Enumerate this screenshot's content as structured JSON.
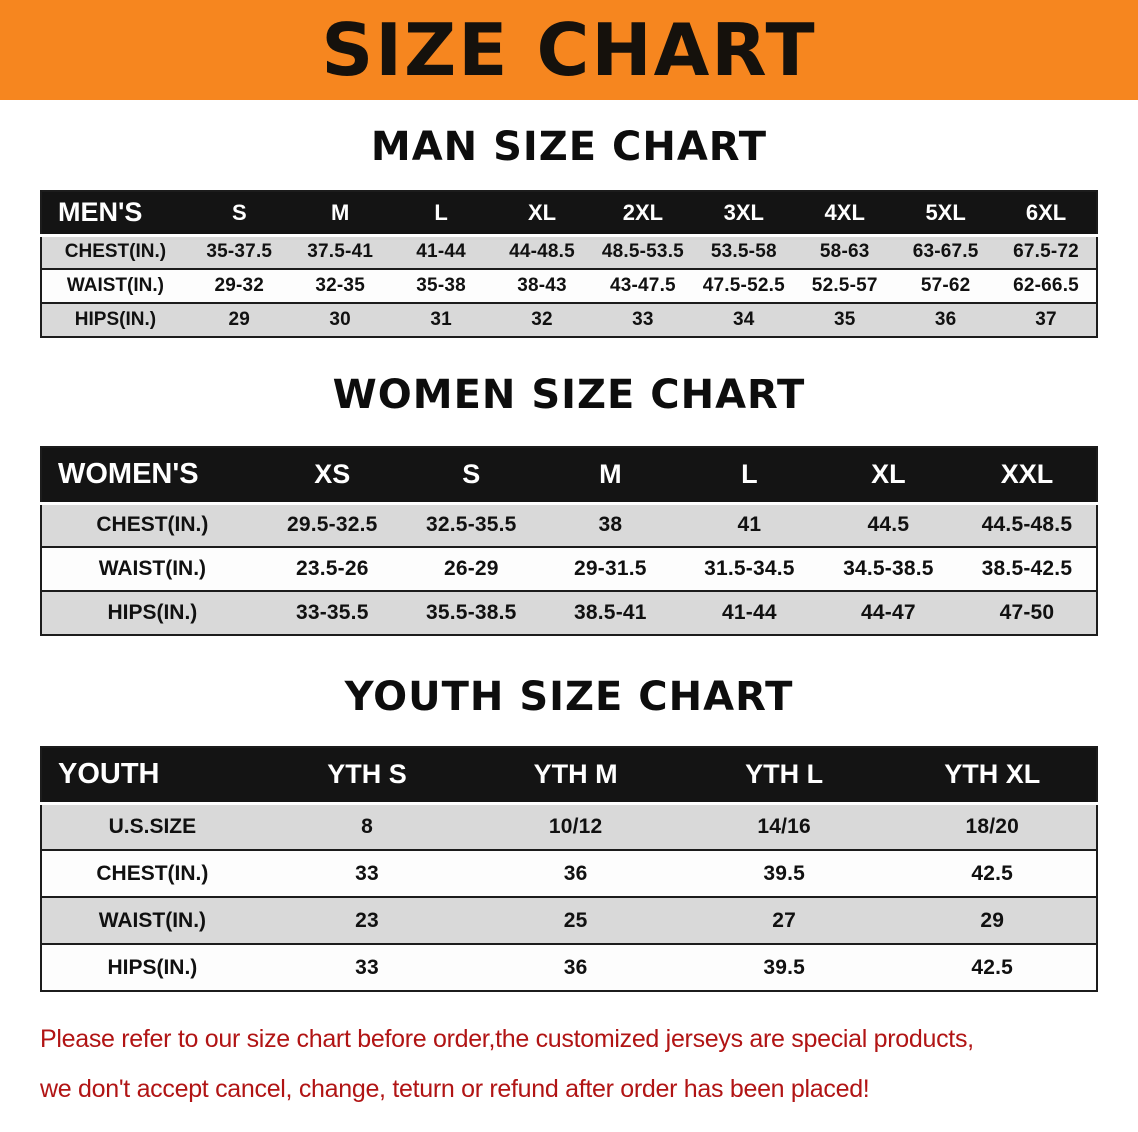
{
  "banner": {
    "title": "SIZE CHART"
  },
  "colors": {
    "banner_bg": "#f6861f",
    "table_header_bg": "#141414",
    "table_header_text": "#ffffff",
    "row_shade": "#d9d9d9",
    "row_plain": "#fdfdfd",
    "border": "#1c1c1c",
    "notice_text": "#b11414"
  },
  "sections": [
    {
      "id": "mens",
      "heading": "MAN SIZE CHART",
      "table": {
        "header": [
          "MEN'S",
          "S",
          "M",
          "L",
          "XL",
          "2XL",
          "3XL",
          "4XL",
          "5XL",
          "6XL"
        ],
        "rows": [
          [
            "CHEST(IN.)",
            "35-37.5",
            "37.5-41",
            "41-44",
            "44-48.5",
            "48.5-53.5",
            "53.5-58",
            "58-63",
            "63-67.5",
            "67.5-72"
          ],
          [
            "WAIST(IN.)",
            "29-32",
            "32-35",
            "35-38",
            "38-43",
            "43-47.5",
            "47.5-52.5",
            "52.5-57",
            "57-62",
            "62-66.5"
          ],
          [
            "HIPS(IN.)",
            "29",
            "30",
            "31",
            "32",
            "33",
            "34",
            "35",
            "36",
            "37"
          ]
        ]
      }
    },
    {
      "id": "womens",
      "heading": "WOMEN SIZE CHART",
      "table": {
        "header": [
          "WOMEN'S",
          "XS",
          "S",
          "M",
          "L",
          "XL",
          "XXL"
        ],
        "rows": [
          [
            "CHEST(IN.)",
            "29.5-32.5",
            "32.5-35.5",
            "38",
            "41",
            "44.5",
            "44.5-48.5"
          ],
          [
            "WAIST(IN.)",
            "23.5-26",
            "26-29",
            "29-31.5",
            "31.5-34.5",
            "34.5-38.5",
            "38.5-42.5"
          ],
          [
            "HIPS(IN.)",
            "33-35.5",
            "35.5-38.5",
            "38.5-41",
            "41-44",
            "44-47",
            "47-50"
          ]
        ]
      }
    },
    {
      "id": "youth",
      "heading": "YOUTH SIZE CHART",
      "table": {
        "header": [
          "YOUTH",
          "YTH S",
          "YTH M",
          "YTH L",
          "YTH XL"
        ],
        "rows": [
          [
            "U.S.SIZE",
            "8",
            "10/12",
            "14/16",
            "18/20"
          ],
          [
            "CHEST(IN.)",
            "33",
            "36",
            "39.5",
            "42.5"
          ],
          [
            "WAIST(IN.)",
            "23",
            "25",
            "27",
            "29"
          ],
          [
            "HIPS(IN.)",
            "33",
            "36",
            "39.5",
            "42.5"
          ]
        ]
      }
    }
  ],
  "notice": {
    "line1": "Please refer to our size chart before order,the customized jerseys are special products,",
    "line2": "we don't accept cancel, change, teturn or refund after order has been placed!"
  }
}
